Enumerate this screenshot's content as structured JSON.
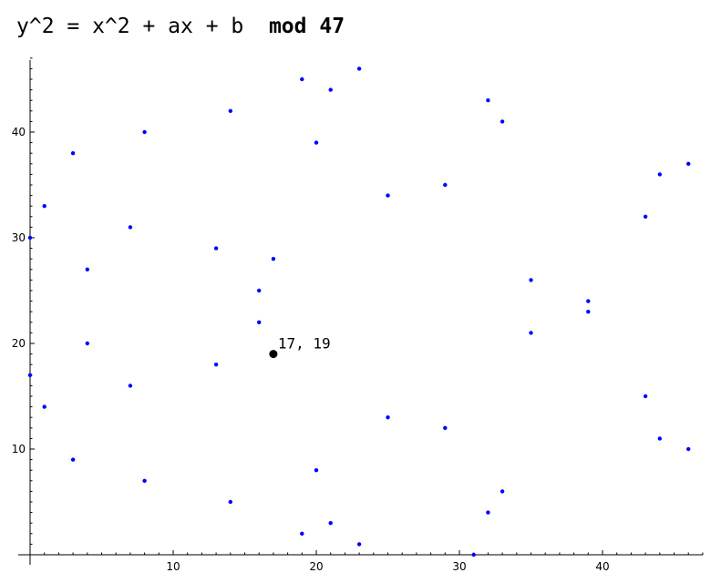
{
  "title": {
    "formula": "y^2 = x^2 + ax + b",
    "modulus": "mod 47"
  },
  "colors": {
    "points": "#0000ff",
    "highlight": "#000000",
    "axes": "#000000"
  },
  "chart_data": {
    "type": "scatter",
    "xlim": [
      0,
      47
    ],
    "ylim": [
      0,
      47
    ],
    "x_ticks": [
      10,
      20,
      30,
      40
    ],
    "y_ticks": [
      10,
      20,
      30,
      40
    ],
    "x_tick_labels": [
      "10",
      "20",
      "30",
      "40"
    ],
    "y_tick_labels": [
      "10",
      "20",
      "30",
      "40"
    ],
    "grid": false,
    "points": [
      [
        0,
        17
      ],
      [
        0,
        30
      ],
      [
        1,
        14
      ],
      [
        1,
        33
      ],
      [
        3,
        9
      ],
      [
        3,
        38
      ],
      [
        4,
        20
      ],
      [
        4,
        27
      ],
      [
        7,
        16
      ],
      [
        7,
        31
      ],
      [
        8,
        7
      ],
      [
        8,
        40
      ],
      [
        13,
        18
      ],
      [
        13,
        29
      ],
      [
        14,
        5
      ],
      [
        14,
        42
      ],
      [
        16,
        22
      ],
      [
        16,
        25
      ],
      [
        17,
        28
      ],
      [
        19,
        2
      ],
      [
        19,
        45
      ],
      [
        20,
        8
      ],
      [
        20,
        39
      ],
      [
        21,
        3
      ],
      [
        21,
        44
      ],
      [
        23,
        1
      ],
      [
        23,
        46
      ],
      [
        25,
        13
      ],
      [
        25,
        34
      ],
      [
        29,
        12
      ],
      [
        29,
        35
      ],
      [
        31,
        0
      ],
      [
        32,
        4
      ],
      [
        32,
        43
      ],
      [
        33,
        6
      ],
      [
        33,
        41
      ],
      [
        35,
        21
      ],
      [
        35,
        26
      ],
      [
        39,
        23
      ],
      [
        39,
        24
      ],
      [
        43,
        15
      ],
      [
        43,
        32
      ],
      [
        44,
        11
      ],
      [
        44,
        36
      ],
      [
        46,
        10
      ],
      [
        46,
        37
      ]
    ],
    "highlight": {
      "x": 17,
      "y": 19,
      "label": "17, 19"
    }
  }
}
